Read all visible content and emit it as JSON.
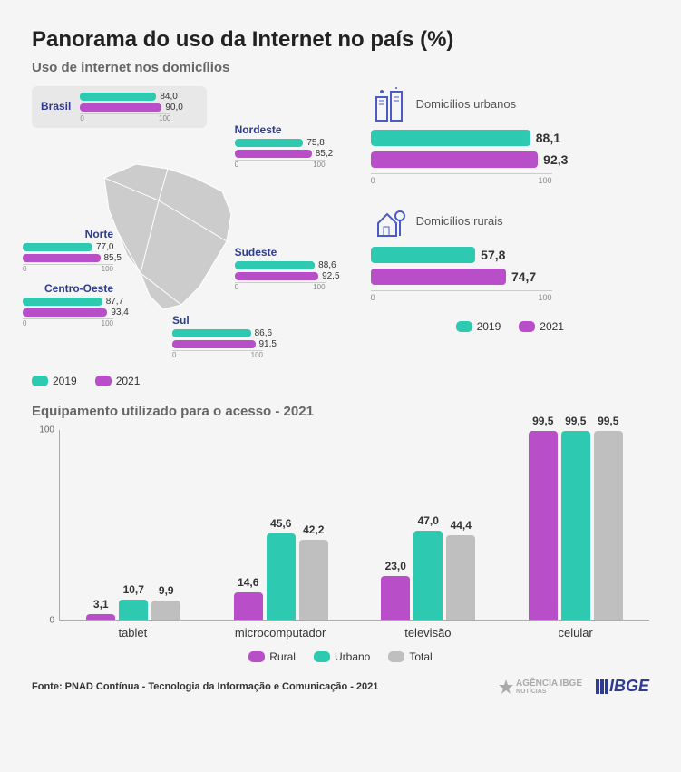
{
  "title": "Panorama do uso da Internet no país (%)",
  "subtitle_top": "Uso de internet nos domicílios",
  "subtitle_bottom": "Equipamento utilizado para o acesso - 2021",
  "colors": {
    "teal": "#2dc9b0",
    "purple": "#b84fc9",
    "grey": "#bfbfbf",
    "map": "#cccccc",
    "navy": "#2e3b8f"
  },
  "axis": {
    "min": "0",
    "max": "100"
  },
  "brasil": {
    "label": "Brasil",
    "v2019": "84,0",
    "p2019": 84.0,
    "v2021": "90,0",
    "p2021": 90.0
  },
  "regions": {
    "norte": {
      "label": "Norte",
      "v2019": "77,0",
      "p2019": 77.0,
      "v2021": "85,5",
      "p2021": 85.5
    },
    "nordeste": {
      "label": "Nordeste",
      "v2019": "75,8",
      "p2019": 75.8,
      "v2021": "85,2",
      "p2021": 85.2
    },
    "centro_oeste": {
      "label": "Centro-Oeste",
      "v2019": "87,7",
      "p2019": 87.7,
      "v2021": "93,4",
      "p2021": 93.4
    },
    "sudeste": {
      "label": "Sudeste",
      "v2019": "88,6",
      "p2019": 88.6,
      "v2021": "92,5",
      "p2021": 92.5
    },
    "sul": {
      "label": "Sul",
      "v2019": "86,6",
      "p2019": 86.6,
      "v2021": "91,5",
      "p2021": 91.5
    }
  },
  "domicilios": {
    "urbanos": {
      "label": "Domicílios urbanos",
      "v2019": "88,1",
      "p2019": 88.1,
      "v2021": "92,3",
      "p2021": 92.3
    },
    "rurais": {
      "label": "Domicílios rurais",
      "v2019": "57,8",
      "p2019": 57.8,
      "v2021": "74,7",
      "p2021": 74.7
    }
  },
  "legend_years": {
    "y2019": "2019",
    "y2021": "2021"
  },
  "equipment_chart": {
    "type": "bar",
    "ylim": [
      0,
      100
    ],
    "yticks": [
      "0",
      "100"
    ],
    "categories": [
      "tablet",
      "microcomputador",
      "televisão",
      "celular"
    ],
    "series": {
      "rural": {
        "label": "Rural",
        "color": "#b84fc9",
        "values": [
          3.1,
          14.6,
          23.0,
          99.5
        ],
        "labels": [
          "3,1",
          "14,6",
          "23,0",
          "99,5"
        ]
      },
      "urbano": {
        "label": "Urbano",
        "color": "#2dc9b0",
        "values": [
          10.7,
          45.6,
          47.0,
          99.5
        ],
        "labels": [
          "10,7",
          "45,6",
          "47,0",
          "99,5"
        ]
      },
      "total": {
        "label": "Total",
        "color": "#bfbfbf",
        "values": [
          9.9,
          42.2,
          44.4,
          99.5
        ],
        "labels": [
          "9,9",
          "42,2",
          "44,4",
          "99,5"
        ]
      }
    }
  },
  "source": "Fonte: PNAD Contínua - Tecnologia da Informação e Comunicação - 2021",
  "logo_agencia": "AGÊNCIA IBGE",
  "logo_agencia_sub": "NOTÍCIAS",
  "logo_ibge": "IBGE"
}
